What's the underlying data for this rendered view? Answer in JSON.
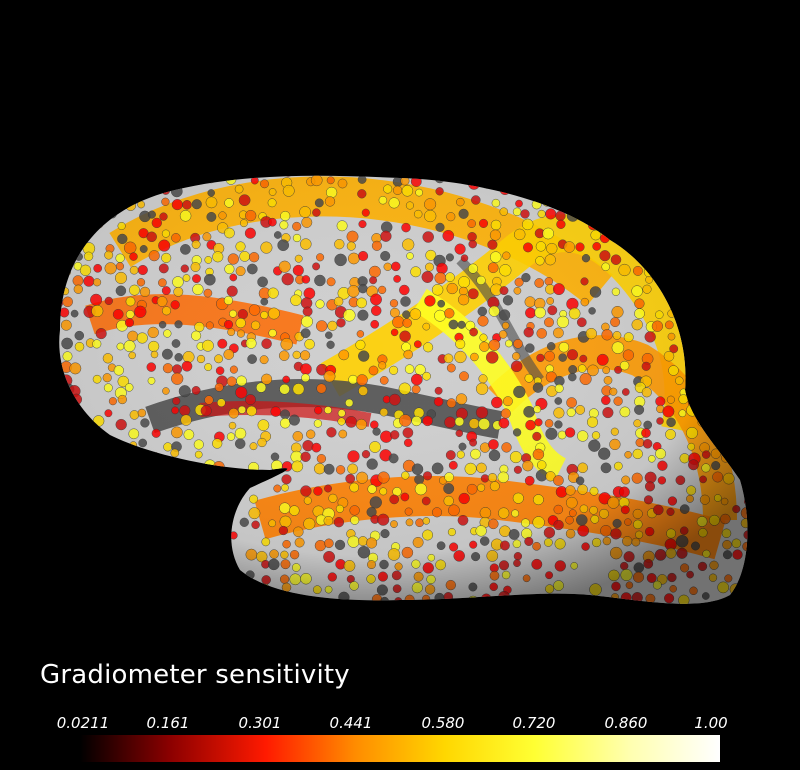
{
  "figure": {
    "colorbar": {
      "title": "Gradiometer sensitivity",
      "ticks": [
        "0.0211",
        "0.161",
        "0.301",
        "0.441",
        "0.580",
        "0.720",
        "0.860",
        "1.00"
      ],
      "colormap": "hot",
      "colors": [
        "#000000",
        "#8b0000",
        "#ff1a00",
        "#ff8c00",
        "#ffd700",
        "#ffff33",
        "#ffffb0",
        "#ffffff"
      ],
      "range": [
        0.0211,
        1.0
      ]
    },
    "surface": {
      "background": "#000000",
      "base_color": "#cfcfcf",
      "sulcus_color": "#4a4a4a",
      "palette": [
        "#ff0000",
        "#d01010",
        "#ff6a00",
        "#ff9a00",
        "#ffc000",
        "#ffe000",
        "#ffff20"
      ]
    }
  }
}
